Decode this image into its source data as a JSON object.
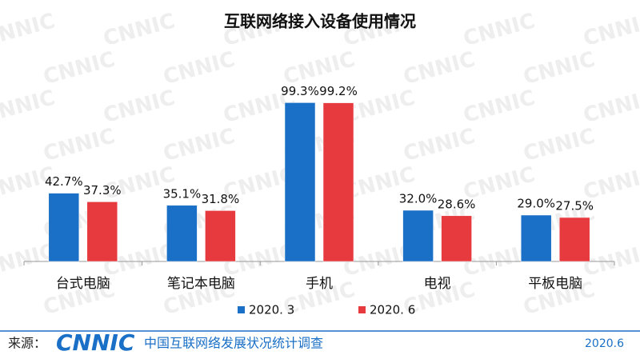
{
  "chart_data": {
    "type": "bar",
    "title": "互联网络接入设备使用情况",
    "categories": [
      "台式电脑",
      "笔记本电脑",
      "手机",
      "电视",
      "平板电脑"
    ],
    "series": [
      {
        "name": "2020. 3",
        "color": "#1a6fc6",
        "values": [
          42.7,
          35.1,
          99.3,
          32.0,
          29.0
        ],
        "value_labels": [
          "42.7%",
          "35.1%",
          "99.3%",
          "32.0%",
          "29.0%"
        ]
      },
      {
        "name": "2020. 6",
        "color": "#e63a3f",
        "values": [
          37.3,
          31.8,
          99.2,
          28.6,
          27.5
        ],
        "value_labels": [
          "37.3%",
          "31.8%",
          "99.2%",
          "28.6%",
          "27.5%"
        ]
      }
    ]
  },
  "watermark": "CNNIC",
  "footer": {
    "source_label": "来源：",
    "logo": "CNNIC",
    "survey": "中国互联网络发展状况统计调查",
    "date": "2020.6"
  }
}
